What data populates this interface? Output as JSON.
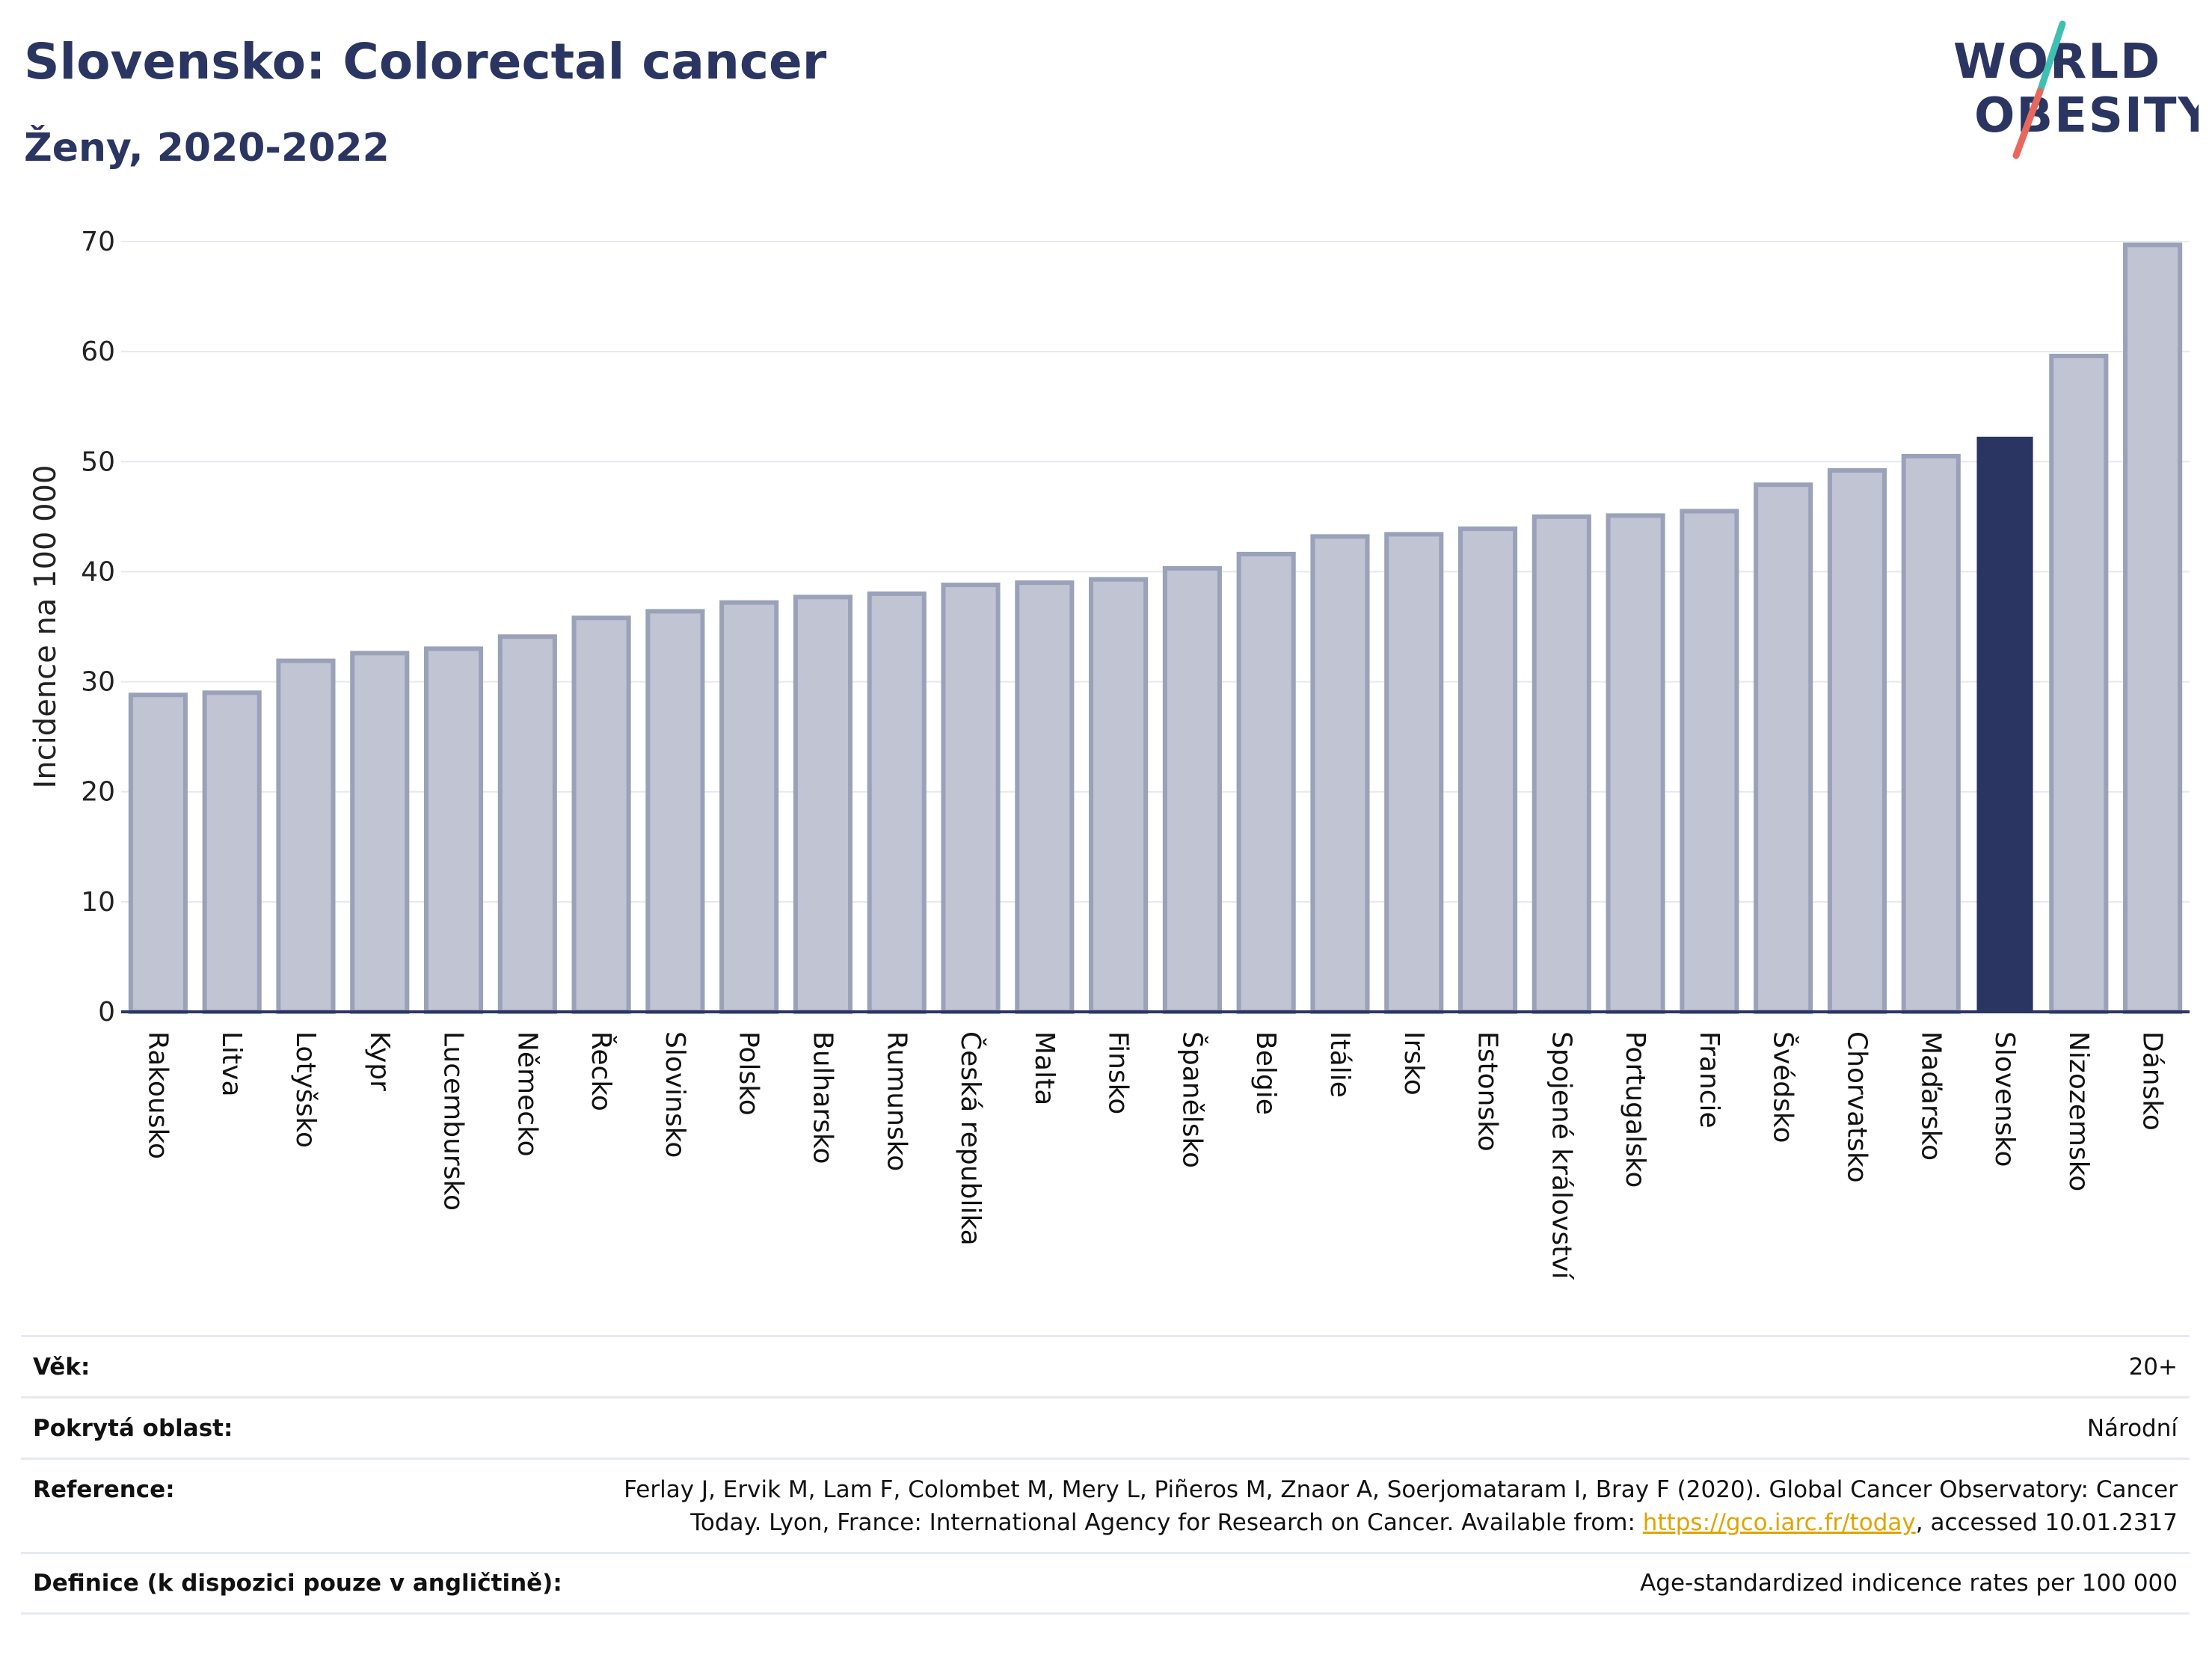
{
  "header": {
    "title": "Slovensko: Colorectal cancer",
    "subtitle": "Ženy, 2020-2022"
  },
  "logo": {
    "line1": "WORLD",
    "line2": "OBESITY",
    "colors": {
      "text": "#2a3561",
      "slash_red": "#e8685e",
      "slash_teal": "#3fbfb1"
    }
  },
  "chart_data": {
    "type": "bar",
    "title": "Slovensko: Colorectal cancer",
    "subtitle": "Ženy, 2020-2022",
    "xlabel": "",
    "ylabel": "Incidence na 100 000",
    "ylim": [
      0,
      70
    ],
    "yticks": [
      0,
      10,
      20,
      30,
      40,
      50,
      60,
      70
    ],
    "grid": true,
    "highlight": "Slovensko",
    "colors": {
      "bar": "#c0c4d3",
      "bar_edge": "#9aa1b9",
      "highlight": "#2a3561",
      "grid": "#e6e8ef",
      "axis": "#2a3561"
    },
    "categories": [
      "Rakousko",
      "Litva",
      "Lotyšsko",
      "Kypr",
      "Lucembursko",
      "Německo",
      "Řecko",
      "Slovinsko",
      "Polsko",
      "Bulharsko",
      "Rumunsko",
      "Česká republika",
      "Malta",
      "Finsko",
      "Španělsko",
      "Belgie",
      "Itálie",
      "Irsko",
      "Estonsko",
      "Spojené království",
      "Portugalsko",
      "Francie",
      "Švédsko",
      "Chorvatsko",
      "Maďarsko",
      "Slovensko",
      "Nizozemsko",
      "Dánsko"
    ],
    "values": [
      28.8,
      29.0,
      31.9,
      32.6,
      33.0,
      34.1,
      35.8,
      36.4,
      37.2,
      37.7,
      38.0,
      38.8,
      39.0,
      39.3,
      40.3,
      41.6,
      43.2,
      43.4,
      43.9,
      45.0,
      45.1,
      45.5,
      47.9,
      49.2,
      50.5,
      52.2,
      59.6,
      69.7
    ]
  },
  "meta": [
    {
      "label": "Věk:",
      "value": "20+"
    },
    {
      "label": "Pokrytá oblast:",
      "value": "Národní"
    },
    {
      "label": "Reference:",
      "value_line1": "Ferlay J, Ervik M, Lam F, Colombet M, Mery L, Piñeros M, Znaor A, Soerjomataram I, Bray F (2020). Global Cancer Observatory: Cancer",
      "value_line2_pre": "Today. Lyon, France: International Agency for Research on Cancer. Available from: ",
      "link": "https://gco.iarc.fr/today",
      "value_line2_post": ", accessed 10.01.2317"
    },
    {
      "label": "Definice (k dispozici pouze v angličtině):",
      "value": "Age-standardized indicence rates per 100 000"
    }
  ]
}
